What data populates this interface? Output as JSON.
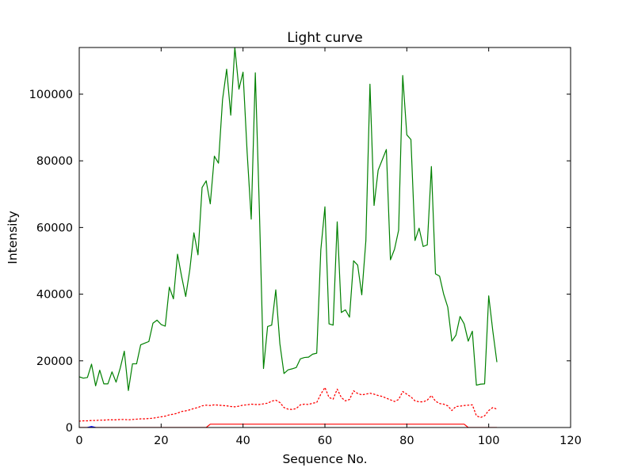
{
  "chart_data": {
    "type": "line",
    "title": "Light curve",
    "xlabel": "Sequence No.",
    "ylabel": "Intensity",
    "xlim": [
      0,
      120
    ],
    "ylim": [
      0,
      114000
    ],
    "xticks": [
      0,
      20,
      40,
      60,
      80,
      100,
      120
    ],
    "yticks": [
      0,
      20000,
      40000,
      60000,
      80000,
      100000
    ],
    "grid": false,
    "series": [
      {
        "color": "#008000",
        "style": "solid",
        "x": [
          0,
          1,
          2,
          3,
          4,
          5,
          6,
          7,
          8,
          9,
          10,
          11,
          12,
          13,
          14,
          15,
          16,
          17,
          18,
          19,
          20,
          21,
          22,
          23,
          24,
          25,
          26,
          27,
          28,
          29,
          30,
          31,
          32,
          33,
          34,
          35,
          36,
          37,
          38,
          39,
          40,
          41,
          42,
          43,
          44,
          45,
          46,
          47,
          48,
          49,
          50,
          51,
          52,
          53,
          54,
          55,
          56,
          57,
          58,
          59,
          60,
          61,
          62,
          63,
          64,
          65,
          66,
          67,
          68,
          69,
          70,
          71,
          72,
          73,
          74,
          75,
          76,
          77,
          78,
          79,
          80,
          81,
          82,
          83,
          84,
          85,
          86,
          87,
          88,
          89,
          90,
          91,
          92,
          93,
          94,
          95,
          96,
          97,
          98,
          99,
          100,
          101,
          102
        ],
        "y": [
          15200,
          14800,
          15000,
          19000,
          12500,
          17200,
          13100,
          13100,
          16700,
          13600,
          17800,
          22900,
          11100,
          19100,
          19100,
          24800,
          25300,
          25800,
          31300,
          32200,
          30900,
          30400,
          42100,
          38600,
          52000,
          45300,
          39300,
          47300,
          58400,
          51800,
          72000,
          74000,
          67100,
          81400,
          79300,
          98400,
          107500,
          93700,
          114000,
          101500,
          106600,
          82600,
          62500,
          106400,
          65000,
          17700,
          30300,
          30700,
          41300,
          25100,
          16200,
          17300,
          17600,
          18000,
          20600,
          21000,
          21100,
          22000,
          22300,
          53300,
          66200,
          31100,
          30700,
          61700,
          34500,
          35300,
          33100,
          50000,
          48700,
          39800,
          56100,
          103000,
          66600,
          77200,
          80300,
          83400,
          50300,
          53500,
          59200,
          105600,
          87800,
          86400,
          56100,
          59800,
          54300,
          54800,
          78300,
          46100,
          45400,
          40000,
          36100,
          25900,
          27700,
          33300,
          31100,
          25900,
          28900,
          12700,
          13000,
          13100,
          39500,
          29000,
          19600
        ]
      },
      {
        "color": "#ff0000",
        "style": "dotted",
        "x": [
          0,
          1,
          2,
          3,
          4,
          5,
          6,
          7,
          8,
          9,
          10,
          11,
          12,
          13,
          14,
          15,
          16,
          17,
          18,
          19,
          20,
          21,
          22,
          23,
          24,
          25,
          26,
          27,
          28,
          29,
          30,
          31,
          32,
          33,
          34,
          35,
          36,
          37,
          38,
          39,
          40,
          41,
          42,
          43,
          44,
          45,
          46,
          47,
          48,
          49,
          50,
          51,
          52,
          53,
          54,
          55,
          56,
          57,
          58,
          59,
          60,
          61,
          62,
          63,
          64,
          65,
          66,
          67,
          68,
          69,
          70,
          71,
          72,
          73,
          74,
          75,
          76,
          77,
          78,
          79,
          80,
          81,
          82,
          83,
          84,
          85,
          86,
          87,
          88,
          89,
          90,
          91,
          92,
          93,
          94,
          95,
          96,
          97,
          98,
          99,
          100,
          101,
          102
        ],
        "y": [
          1900,
          2000,
          2000,
          2100,
          2100,
          2200,
          2200,
          2300,
          2300,
          2300,
          2400,
          2400,
          2300,
          2400,
          2500,
          2600,
          2600,
          2700,
          2800,
          3000,
          3200,
          3400,
          3800,
          4000,
          4300,
          4800,
          5000,
          5300,
          5700,
          6000,
          6500,
          6700,
          6600,
          6800,
          6700,
          6600,
          6500,
          6300,
          6200,
          6400,
          6700,
          6800,
          7000,
          6900,
          6900,
          7100,
          7300,
          7900,
          8200,
          7500,
          6000,
          5500,
          5400,
          5700,
          6800,
          7000,
          6900,
          7300,
          7500,
          10000,
          12000,
          9000,
          8500,
          11500,
          9000,
          8000,
          8400,
          11000,
          10200,
          9800,
          10000,
          10300,
          10000,
          9600,
          9300,
          8800,
          8300,
          7800,
          8400,
          10800,
          10000,
          9200,
          8000,
          7700,
          7700,
          8200,
          9600,
          7900,
          7200,
          7000,
          6500,
          5100,
          6300,
          6400,
          6600,
          6700,
          6800,
          3500,
          3000,
          3500,
          5100,
          6000,
          5500
        ]
      },
      {
        "color": "#ff0000",
        "style": "solid",
        "x": [
          0,
          31,
          32,
          94,
          95,
          102
        ],
        "y": [
          0,
          0,
          1000,
          1000,
          0,
          0
        ]
      },
      {
        "color": "#0000ff",
        "style": "solid",
        "x": [
          2,
          3,
          4
        ],
        "y": [
          0,
          300,
          0
        ]
      }
    ]
  }
}
